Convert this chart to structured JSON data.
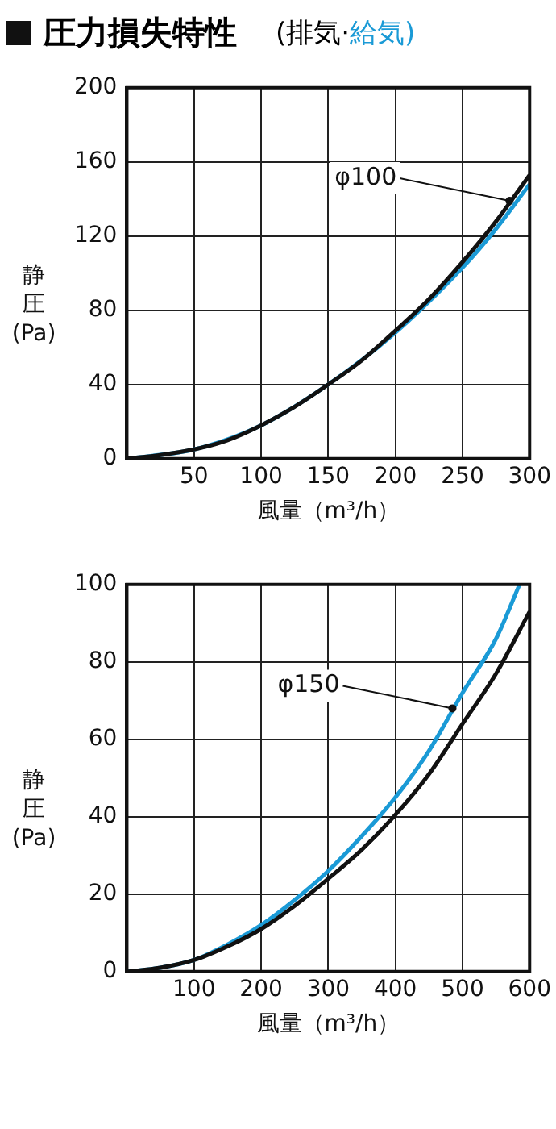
{
  "chart_data": [
    {
      "type": "line",
      "title": "圧力損失特性",
      "subtitle": "(排気·給気)",
      "xlabel": "風量（m³/h）",
      "ylabel": "静圧(Pa)",
      "xlim": [
        0,
        300
      ],
      "xticks": [
        50,
        100,
        150,
        200,
        250,
        300
      ],
      "ylim": [
        0,
        200
      ],
      "yticks": [
        0,
        40,
        80,
        120,
        160,
        200
      ],
      "grid": true,
      "marker": "none",
      "line_style": "solid",
      "annotations": [
        {
          "text": "φ100",
          "x": 285,
          "y": 139
        }
      ],
      "series": [
        {
          "color": "#111111",
          "x": [
            0,
            25,
            50,
            75,
            100,
            125,
            150,
            175,
            200,
            225,
            250,
            275,
            300
          ],
          "values": [
            0,
            2,
            5,
            10,
            18,
            28,
            40,
            53,
            69,
            86,
            106,
            128,
            153
          ]
        },
        {
          "color": "#1a9ad6",
          "x": [
            0,
            50,
            100,
            150,
            200,
            250,
            275,
            300
          ],
          "values": [
            0,
            5,
            18,
            40,
            68,
            103,
            124,
            148
          ]
        }
      ]
    },
    {
      "type": "line",
      "xlabel": "風量（m³/h）",
      "ylabel": "静圧(Pa)",
      "xlim": [
        0,
        600
      ],
      "xticks": [
        100,
        200,
        300,
        400,
        500,
        600
      ],
      "ylim": [
        0,
        100
      ],
      "yticks": [
        0,
        20,
        40,
        60,
        80,
        100
      ],
      "grid": true,
      "marker": "none",
      "line_style": "solid",
      "annotations": [
        {
          "text": "φ150",
          "x": 485,
          "y": 68
        }
      ],
      "series": [
        {
          "color": "#111111",
          "x": [
            0,
            50,
            100,
            150,
            200,
            250,
            300,
            350,
            400,
            450,
            500,
            550,
            600
          ],
          "values": [
            0,
            1,
            3,
            6.5,
            11,
            17,
            24,
            31.5,
            40.5,
            51,
            64,
            77,
            93
          ]
        },
        {
          "color": "#1a9ad6",
          "x": [
            0,
            50,
            100,
            150,
            200,
            250,
            300,
            350,
            400,
            450,
            500,
            550,
            585
          ],
          "values": [
            0,
            1,
            3,
            7,
            12,
            18.5,
            26,
            35,
            45,
            57,
            72,
            86,
            100
          ]
        }
      ]
    }
  ]
}
